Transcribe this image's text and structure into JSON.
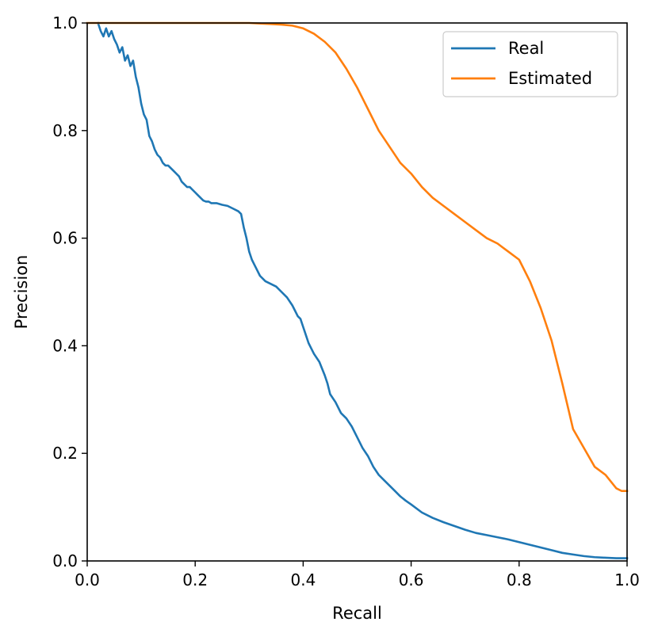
{
  "chart_data": {
    "type": "line",
    "xlabel": "Recall",
    "ylabel": "Precision",
    "xlim": [
      0.0,
      1.0
    ],
    "ylim": [
      0.0,
      1.0
    ],
    "x_ticks": [
      "0.0",
      "0.2",
      "0.4",
      "0.6",
      "0.8",
      "1.0"
    ],
    "y_ticks": [
      "0.0",
      "0.2",
      "0.4",
      "0.6",
      "0.8",
      "1.0"
    ],
    "grid": false,
    "legend_position": "top-right",
    "series": [
      {
        "name": "Real",
        "color": "#1f77b4",
        "x": [
          0.02,
          0.025,
          0.03,
          0.035,
          0.04,
          0.045,
          0.05,
          0.055,
          0.06,
          0.065,
          0.07,
          0.075,
          0.08,
          0.085,
          0.09,
          0.095,
          0.1,
          0.105,
          0.11,
          0.115,
          0.12,
          0.125,
          0.13,
          0.135,
          0.14,
          0.145,
          0.15,
          0.155,
          0.16,
          0.165,
          0.17,
          0.175,
          0.18,
          0.185,
          0.19,
          0.195,
          0.2,
          0.205,
          0.21,
          0.215,
          0.22,
          0.225,
          0.23,
          0.24,
          0.25,
          0.26,
          0.27,
          0.28,
          0.285,
          0.29,
          0.295,
          0.3,
          0.305,
          0.31,
          0.315,
          0.32,
          0.33,
          0.34,
          0.35,
          0.36,
          0.37,
          0.38,
          0.385,
          0.39,
          0.395,
          0.4,
          0.405,
          0.41,
          0.415,
          0.42,
          0.43,
          0.44,
          0.445,
          0.45,
          0.46,
          0.47,
          0.48,
          0.49,
          0.5,
          0.51,
          0.52,
          0.53,
          0.54,
          0.55,
          0.56,
          0.57,
          0.58,
          0.59,
          0.6,
          0.62,
          0.64,
          0.66,
          0.68,
          0.7,
          0.72,
          0.74,
          0.76,
          0.78,
          0.8,
          0.82,
          0.84,
          0.86,
          0.88,
          0.9,
          0.92,
          0.94,
          0.96,
          0.98,
          1.0
        ],
        "y": [
          1.0,
          0.985,
          0.975,
          0.99,
          0.975,
          0.985,
          0.97,
          0.96,
          0.945,
          0.955,
          0.93,
          0.94,
          0.92,
          0.93,
          0.9,
          0.88,
          0.85,
          0.83,
          0.82,
          0.79,
          0.78,
          0.765,
          0.755,
          0.75,
          0.74,
          0.735,
          0.735,
          0.73,
          0.725,
          0.72,
          0.715,
          0.705,
          0.7,
          0.695,
          0.695,
          0.69,
          0.685,
          0.68,
          0.675,
          0.67,
          0.668,
          0.668,
          0.665,
          0.665,
          0.662,
          0.66,
          0.655,
          0.65,
          0.645,
          0.62,
          0.6,
          0.575,
          0.56,
          0.55,
          0.54,
          0.53,
          0.52,
          0.515,
          0.51,
          0.5,
          0.49,
          0.475,
          0.465,
          0.455,
          0.45,
          0.435,
          0.42,
          0.405,
          0.395,
          0.385,
          0.37,
          0.345,
          0.33,
          0.31,
          0.295,
          0.275,
          0.265,
          0.25,
          0.23,
          0.21,
          0.195,
          0.175,
          0.16,
          0.15,
          0.14,
          0.13,
          0.12,
          0.112,
          0.105,
          0.09,
          0.08,
          0.072,
          0.065,
          0.058,
          0.052,
          0.048,
          0.044,
          0.04,
          0.035,
          0.03,
          0.025,
          0.02,
          0.015,
          0.012,
          0.009,
          0.007,
          0.006,
          0.005,
          0.005
        ]
      },
      {
        "name": "Estimated",
        "color": "#ff7f0e",
        "x": [
          0.0,
          0.05,
          0.1,
          0.15,
          0.2,
          0.25,
          0.3,
          0.32,
          0.34,
          0.36,
          0.38,
          0.4,
          0.42,
          0.44,
          0.46,
          0.48,
          0.5,
          0.52,
          0.54,
          0.56,
          0.58,
          0.6,
          0.62,
          0.64,
          0.66,
          0.68,
          0.7,
          0.72,
          0.74,
          0.76,
          0.78,
          0.8,
          0.82,
          0.84,
          0.86,
          0.88,
          0.9,
          0.92,
          0.94,
          0.96,
          0.98,
          0.99,
          1.0
        ],
        "y": [
          1.0,
          1.0,
          1.0,
          1.0,
          1.0,
          1.0,
          1.0,
          0.999,
          0.998,
          0.997,
          0.995,
          0.99,
          0.98,
          0.965,
          0.945,
          0.915,
          0.88,
          0.84,
          0.8,
          0.77,
          0.74,
          0.72,
          0.695,
          0.675,
          0.66,
          0.645,
          0.63,
          0.615,
          0.6,
          0.59,
          0.575,
          0.56,
          0.52,
          0.47,
          0.41,
          0.33,
          0.245,
          0.21,
          0.175,
          0.16,
          0.135,
          0.13,
          0.13
        ]
      }
    ]
  }
}
